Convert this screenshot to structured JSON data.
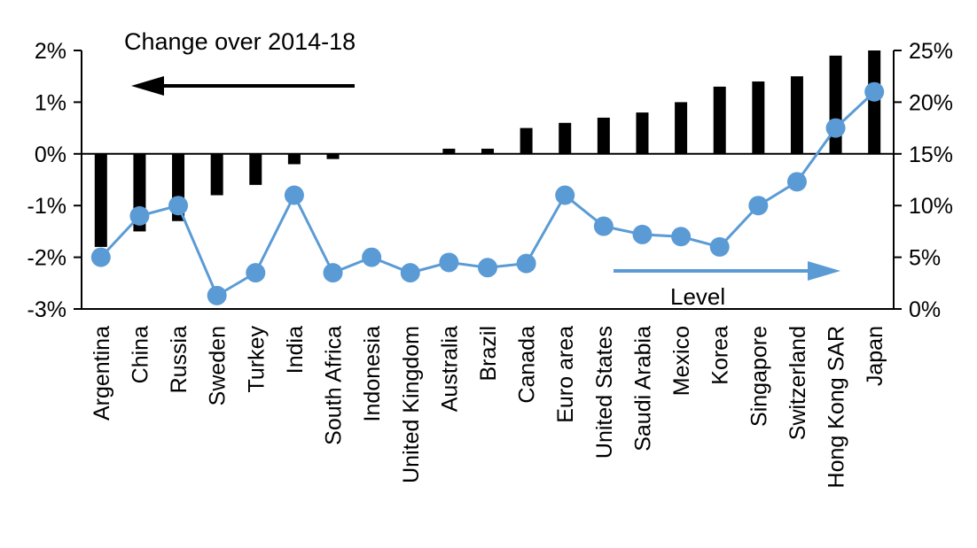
{
  "chart_data": {
    "type": "bar",
    "subtype": "combo-bar-line-dual-axis",
    "categories": [
      "Argentina",
      "China",
      "Russia",
      "Sweden",
      "Turkey",
      "India",
      "South Africa",
      "Indonesia",
      "United Kingdom",
      "Australia",
      "Brazil",
      "Canada",
      "Euro area",
      "United States",
      "Saudi Arabia",
      "Mexico",
      "Korea",
      "Singapore",
      "Switzerland",
      "Hong Kong SAR",
      "Japan"
    ],
    "series": [
      {
        "name": "Change over 2014-18",
        "type": "bar",
        "axis": "left",
        "color": "#000000",
        "values": [
          -1.8,
          -1.5,
          -1.3,
          -0.8,
          -0.6,
          -0.2,
          -0.1,
          0,
          0,
          0.1,
          0.1,
          0.5,
          0.6,
          0.7,
          0.8,
          1.0,
          1.3,
          1.4,
          1.5,
          1.9,
          2.0
        ]
      },
      {
        "name": "Level",
        "type": "line",
        "axis": "right",
        "color": "#5b9bd5",
        "values": [
          5,
          9,
          10,
          1.3,
          3.5,
          11,
          3.5,
          5,
          3.5,
          4.5,
          4,
          4.4,
          11,
          8,
          7.2,
          7,
          6,
          10,
          12.3,
          17.5,
          21
        ]
      }
    ],
    "left_axis": {
      "min": -3,
      "max": 2,
      "ticks": [
        {
          "value": 2,
          "label": "2%"
        },
        {
          "value": 1,
          "label": "1%"
        },
        {
          "value": 0,
          "label": "0%"
        },
        {
          "value": -1,
          "label": "-1%"
        },
        {
          "value": -2,
          "label": "-2%"
        },
        {
          "value": -3,
          "label": "-3%"
        }
      ]
    },
    "right_axis": {
      "min": 0,
      "max": 25,
      "ticks": [
        {
          "value": 25,
          "label": "25%"
        },
        {
          "value": 20,
          "label": "20%"
        },
        {
          "value": 15,
          "label": "15%"
        },
        {
          "value": 10,
          "label": "10%"
        },
        {
          "value": 5,
          "label": "5%"
        },
        {
          "value": 0,
          "label": "0%"
        }
      ]
    },
    "annotations": [
      {
        "text": "Change over 2014-18",
        "arrow": "left",
        "color": "#000000"
      },
      {
        "text": "Level",
        "arrow": "right",
        "color": "#5b9bd5"
      }
    ],
    "grid": "off",
    "legend": "none (in-plot arrow annotations)"
  }
}
